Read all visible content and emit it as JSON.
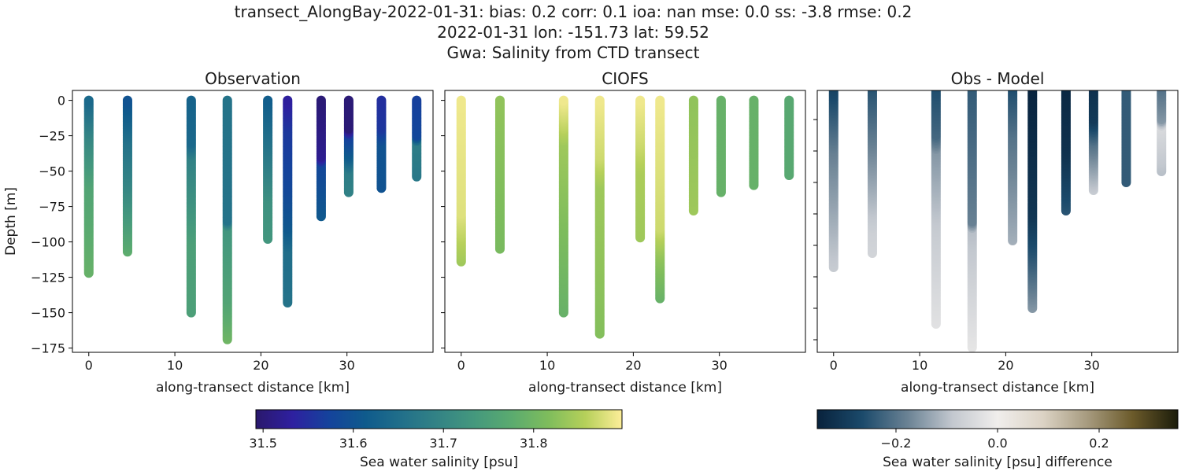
{
  "title_lines": [
    "transect_AlongBay-2022-01-31: bias: 0.2  corr: 0.1  ioa: nan  mse: 0.0  ss: -3.8  rmse: 0.2",
    "2022-01-31 lon: -151.73 lat: 59.52",
    "Gwa: Salinity from CTD transect"
  ],
  "chart_data": [
    {
      "type": "scatter",
      "title": "Observation",
      "xlabel": "along-transect distance [km]",
      "ylabel": "Depth [m]",
      "xlim": [
        -1.9,
        40
      ],
      "ylim": [
        -178,
        7
      ],
      "xticks": [
        0,
        10,
        20,
        30
      ],
      "yticks": [
        0,
        -25,
        -50,
        -75,
        -100,
        -125,
        -150,
        -175
      ],
      "colormap": "haline",
      "colorbar_ref": 0,
      "profiles": [
        {
          "x": 0,
          "points": [
            [
              0,
              31.64
            ],
            [
              -25,
              31.7
            ],
            [
              -60,
              31.76
            ],
            [
              -122,
              31.79
            ]
          ]
        },
        {
          "x": 4.5,
          "points": [
            [
              0,
              31.6
            ],
            [
              -30,
              31.66
            ],
            [
              -60,
              31.7
            ],
            [
              -90,
              31.75
            ],
            [
              -107,
              31.78
            ]
          ]
        },
        {
          "x": 11.9,
          "points": [
            [
              0,
              31.63
            ],
            [
              -30,
              31.64
            ],
            [
              -40,
              31.69
            ],
            [
              -100,
              31.75
            ],
            [
              -150,
              31.75
            ]
          ]
        },
        {
          "x": 16.1,
          "points": [
            [
              0,
              31.66
            ],
            [
              -85,
              31.66
            ],
            [
              -90,
              31.73
            ],
            [
              -140,
              31.76
            ],
            [
              -169,
              31.8
            ]
          ]
        },
        {
          "x": 20.8,
          "points": [
            [
              0,
              31.62
            ],
            [
              -30,
              31.66
            ],
            [
              -70,
              31.72
            ],
            [
              -98,
              31.73
            ]
          ]
        },
        {
          "x": 23.1,
          "points": [
            [
              0,
              31.53
            ],
            [
              -20,
              31.56
            ],
            [
              -60,
              31.58
            ],
            [
              -90,
              31.61
            ],
            [
              -105,
              31.65
            ],
            [
              -143,
              31.66
            ]
          ]
        },
        {
          "x": 27.0,
          "points": [
            [
              0,
              31.5
            ],
            [
              -40,
              31.52
            ],
            [
              -45,
              31.58
            ],
            [
              -82,
              31.61
            ]
          ]
        },
        {
          "x": 30.2,
          "points": [
            [
              0,
              31.5
            ],
            [
              -20,
              31.5
            ],
            [
              -25,
              31.57
            ],
            [
              -40,
              31.62
            ],
            [
              -50,
              31.68
            ],
            [
              -65,
              31.69
            ]
          ]
        },
        {
          "x": 34.0,
          "points": [
            [
              0,
              31.55
            ],
            [
              -20,
              31.56
            ],
            [
              -30,
              31.6
            ],
            [
              -62,
              31.6
            ]
          ]
        },
        {
          "x": 38.1,
          "points": [
            [
              0,
              31.57
            ],
            [
              -25,
              31.58
            ],
            [
              -30,
              31.68
            ],
            [
              -54,
              31.67
            ]
          ]
        }
      ]
    },
    {
      "type": "scatter",
      "title": "CIOFS",
      "xlabel": "along-transect distance [km]",
      "xlim": [
        -1.9,
        40
      ],
      "ylim": [
        -178,
        7
      ],
      "xticks": [
        0,
        10,
        20,
        30
      ],
      "yticks": [
        0,
        -25,
        -50,
        -75,
        -100,
        -125,
        -150,
        -175
      ],
      "colormap": "haline",
      "colorbar_ref": 0,
      "profiles": [
        {
          "x": 0,
          "points": [
            [
              0,
              31.89
            ],
            [
              -80,
              31.88
            ],
            [
              -114,
              31.84
            ]
          ]
        },
        {
          "x": 4.5,
          "points": [
            [
              0,
              31.83
            ],
            [
              -105,
              31.81
            ]
          ]
        },
        {
          "x": 11.9,
          "points": [
            [
              0,
              31.89
            ],
            [
              -20,
              31.86
            ],
            [
              -30,
              31.84
            ],
            [
              -150,
              31.79
            ]
          ]
        },
        {
          "x": 16.1,
          "points": [
            [
              0,
              31.89
            ],
            [
              -40,
              31.87
            ],
            [
              -60,
              31.84
            ],
            [
              -165,
              31.82
            ]
          ]
        },
        {
          "x": 20.8,
          "points": [
            [
              0,
              31.89
            ],
            [
              -30,
              31.87
            ],
            [
              -50,
              31.85
            ],
            [
              -97,
              31.84
            ]
          ]
        },
        {
          "x": 23.1,
          "points": [
            [
              0,
              31.89
            ],
            [
              -90,
              31.87
            ],
            [
              -110,
              31.83
            ],
            [
              -140,
              31.79
            ]
          ]
        },
        {
          "x": 27.0,
          "points": [
            [
              0,
              31.83
            ],
            [
              -78,
              31.84
            ]
          ]
        },
        {
          "x": 30.2,
          "points": [
            [
              0,
              31.79
            ],
            [
              -65,
              31.79
            ]
          ]
        },
        {
          "x": 34.0,
          "points": [
            [
              0,
              31.79
            ],
            [
              -60,
              31.79
            ]
          ]
        },
        {
          "x": 38.1,
          "points": [
            [
              0,
              31.77
            ],
            [
              -53,
              31.77
            ]
          ]
        }
      ]
    },
    {
      "type": "scatter",
      "title": "Obs - Model",
      "xlabel": "along-transect distance [km]",
      "xlim": [
        -1.9,
        40
      ],
      "ylim": [
        -168,
        -1.5
      ],
      "xticks": [
        0,
        10,
        20,
        30
      ],
      "yticks": [
        -20,
        -40,
        -60,
        -80,
        -100,
        -120,
        -140,
        -160
      ],
      "colormap": "diff",
      "colorbar_ref": 1,
      "profiles": [
        {
          "x": 0,
          "points": [
            [
              0,
              -0.28
            ],
            [
              -40,
              -0.18
            ],
            [
              -114,
              -0.08
            ]
          ]
        },
        {
          "x": 4.5,
          "points": [
            [
              0,
              -0.25
            ],
            [
              -50,
              -0.15
            ],
            [
              -90,
              -0.07
            ],
            [
              -105,
              -0.06
            ]
          ]
        },
        {
          "x": 11.9,
          "points": [
            [
              0,
              -0.26
            ],
            [
              -30,
              -0.22
            ],
            [
              -40,
              -0.15
            ],
            [
              -90,
              -0.08
            ],
            [
              -150,
              -0.03
            ]
          ]
        },
        {
          "x": 16.1,
          "points": [
            [
              0,
              -0.24
            ],
            [
              -85,
              -0.18
            ],
            [
              -90,
              -0.1
            ],
            [
              -165,
              -0.02
            ]
          ]
        },
        {
          "x": 20.8,
          "points": [
            [
              0,
              -0.26
            ],
            [
              -30,
              -0.2
            ],
            [
              -97,
              -0.12
            ]
          ]
        },
        {
          "x": 23.1,
          "points": [
            [
              0,
              -0.35
            ],
            [
              -80,
              -0.31
            ],
            [
              -105,
              -0.25
            ],
            [
              -140,
              -0.15
            ]
          ]
        },
        {
          "x": 27.0,
          "points": [
            [
              0,
              -0.34
            ],
            [
              -40,
              -0.32
            ],
            [
              -78,
              -0.25
            ]
          ]
        },
        {
          "x": 30.2,
          "points": [
            [
              0,
              -0.32
            ],
            [
              -20,
              -0.3
            ],
            [
              -35,
              -0.2
            ],
            [
              -65,
              -0.08
            ]
          ]
        },
        {
          "x": 34.0,
          "points": [
            [
              0,
              -0.24
            ],
            [
              -60,
              -0.24
            ]
          ]
        },
        {
          "x": 38.1,
          "points": [
            [
              0,
              -0.2
            ],
            [
              -20,
              -0.15
            ],
            [
              -25,
              -0.05
            ],
            [
              -53,
              -0.1
            ]
          ]
        }
      ]
    }
  ],
  "colorbars": [
    {
      "label": "Sea water salinity [psu]",
      "range": [
        31.492,
        31.898
      ],
      "ticks": [
        "31.5",
        "31.6",
        "31.7",
        "31.8"
      ],
      "colors": [
        "#2a186c",
        "#2e20a0",
        "#14439c",
        "#0f5b8c",
        "#22708a",
        "#348485",
        "#45997d",
        "#5bab6f",
        "#7fbd5c",
        "#b6d05a",
        "#fdee99"
      ]
    },
    {
      "label": "Sea water salinity [psu] difference",
      "range": [
        -0.355,
        0.355
      ],
      "ticks": [
        "−0.2",
        "0.0",
        "0.2"
      ],
      "colors": [
        "#08223c",
        "#1b4a6b",
        "#6a8294",
        "#c3c8cf",
        "#f0eeec",
        "#dcd3c5",
        "#a69a7e",
        "#6b5a2a",
        "#1b1c0a"
      ]
    }
  ]
}
